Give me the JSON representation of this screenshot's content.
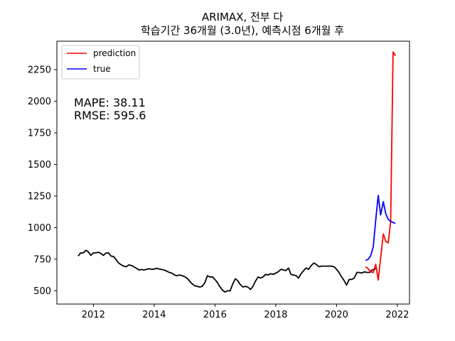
{
  "chart_data": {
    "type": "line",
    "title_line1": "ARIMAX, 전부 다",
    "title_line2": "학습기간 36개월 (3.0년), 예측시점 6개월 후",
    "xlabel": "",
    "ylabel": "",
    "xlim": [
      2010.8,
      2022.4
    ],
    "ylim": [
      395,
      2475
    ],
    "x_ticks": [
      2012,
      2014,
      2016,
      2018,
      2020,
      2022
    ],
    "x_tick_labels": [
      "2012",
      "2014",
      "2016",
      "2018",
      "2020",
      "2022"
    ],
    "y_ticks": [
      500,
      750,
      1000,
      1250,
      1500,
      1750,
      2000,
      2250
    ],
    "y_tick_labels": [
      "500",
      "750",
      "1000",
      "1250",
      "1500",
      "1750",
      "2000",
      "2250"
    ],
    "grid": false,
    "legend_position": "top-left",
    "annotations": [
      "MAPE: 38.11",
      "RMSE: 595.6"
    ],
    "series": [
      {
        "name": "",
        "color": "#000000",
        "points": [
          [
            2011.5,
            775
          ],
          [
            2011.58,
            800
          ],
          [
            2011.67,
            800
          ],
          [
            2011.75,
            820
          ],
          [
            2011.83,
            810
          ],
          [
            2011.92,
            780
          ],
          [
            2012.0,
            800
          ],
          [
            2012.08,
            800
          ],
          [
            2012.17,
            805
          ],
          [
            2012.25,
            795
          ],
          [
            2012.33,
            780
          ],
          [
            2012.42,
            800
          ],
          [
            2012.5,
            800
          ],
          [
            2012.58,
            775
          ],
          [
            2012.67,
            770
          ],
          [
            2012.75,
            745
          ],
          [
            2012.83,
            720
          ],
          [
            2012.92,
            705
          ],
          [
            2013.0,
            695
          ],
          [
            2013.08,
            690
          ],
          [
            2013.17,
            705
          ],
          [
            2013.25,
            700
          ],
          [
            2013.33,
            690
          ],
          [
            2013.42,
            678
          ],
          [
            2013.5,
            665
          ],
          [
            2013.58,
            668
          ],
          [
            2013.67,
            665
          ],
          [
            2013.75,
            670
          ],
          [
            2013.83,
            675
          ],
          [
            2013.92,
            670
          ],
          [
            2014.0,
            672
          ],
          [
            2014.08,
            678
          ],
          [
            2014.17,
            672
          ],
          [
            2014.25,
            668
          ],
          [
            2014.33,
            665
          ],
          [
            2014.42,
            655
          ],
          [
            2014.5,
            645
          ],
          [
            2014.58,
            640
          ],
          [
            2014.67,
            625
          ],
          [
            2014.75,
            620
          ],
          [
            2014.83,
            625
          ],
          [
            2014.92,
            620
          ],
          [
            2015.0,
            612
          ],
          [
            2015.08,
            600
          ],
          [
            2015.17,
            575
          ],
          [
            2015.25,
            555
          ],
          [
            2015.33,
            540
          ],
          [
            2015.42,
            535
          ],
          [
            2015.5,
            530
          ],
          [
            2015.58,
            535
          ],
          [
            2015.67,
            565
          ],
          [
            2015.75,
            620
          ],
          [
            2015.83,
            610
          ],
          [
            2015.92,
            610
          ],
          [
            2016.0,
            590
          ],
          [
            2016.08,
            565
          ],
          [
            2016.17,
            530
          ],
          [
            2016.25,
            505
          ],
          [
            2016.33,
            490
          ],
          [
            2016.42,
            500
          ],
          [
            2016.5,
            500
          ],
          [
            2016.58,
            550
          ],
          [
            2016.67,
            595
          ],
          [
            2016.75,
            580
          ],
          [
            2016.83,
            550
          ],
          [
            2016.92,
            530
          ],
          [
            2017.0,
            535
          ],
          [
            2017.08,
            530
          ],
          [
            2017.17,
            510
          ],
          [
            2017.25,
            535
          ],
          [
            2017.33,
            575
          ],
          [
            2017.42,
            610
          ],
          [
            2017.5,
            600
          ],
          [
            2017.58,
            610
          ],
          [
            2017.67,
            630
          ],
          [
            2017.75,
            625
          ],
          [
            2017.83,
            635
          ],
          [
            2017.92,
            630
          ],
          [
            2018.0,
            640
          ],
          [
            2018.08,
            650
          ],
          [
            2018.17,
            670
          ],
          [
            2018.25,
            665
          ],
          [
            2018.33,
            660
          ],
          [
            2018.42,
            680
          ],
          [
            2018.5,
            630
          ],
          [
            2018.58,
            625
          ],
          [
            2018.67,
            620
          ],
          [
            2018.75,
            600
          ],
          [
            2018.83,
            635
          ],
          [
            2018.92,
            660
          ],
          [
            2019.0,
            680
          ],
          [
            2019.08,
            670
          ],
          [
            2019.17,
            700
          ],
          [
            2019.25,
            720
          ],
          [
            2019.33,
            710
          ],
          [
            2019.42,
            690
          ],
          [
            2019.5,
            695
          ],
          [
            2019.58,
            695
          ],
          [
            2019.67,
            695
          ],
          [
            2019.75,
            695
          ],
          [
            2019.83,
            695
          ],
          [
            2019.92,
            690
          ],
          [
            2020.0,
            670
          ],
          [
            2020.08,
            645
          ],
          [
            2020.17,
            610
          ],
          [
            2020.25,
            580
          ],
          [
            2020.33,
            545
          ],
          [
            2020.42,
            590
          ],
          [
            2020.5,
            590
          ],
          [
            2020.58,
            600
          ],
          [
            2020.67,
            645
          ],
          [
            2020.75,
            645
          ],
          [
            2020.83,
            640
          ],
          [
            2020.92,
            650
          ],
          [
            2021.0,
            645
          ],
          [
            2021.08,
            645
          ],
          [
            2021.17,
            665
          ],
          [
            2021.25,
            670
          ],
          [
            2021.33,
            680
          ]
        ]
      },
      {
        "name": "prediction",
        "color": "#ff0000",
        "points": [
          [
            2020.96,
            690
          ],
          [
            2021.04,
            675
          ],
          [
            2021.12,
            650
          ],
          [
            2021.21,
            645
          ],
          [
            2021.29,
            710
          ],
          [
            2021.37,
            585
          ],
          [
            2021.45,
            760
          ],
          [
            2021.54,
            950
          ],
          [
            2021.62,
            890
          ],
          [
            2021.7,
            880
          ],
          [
            2021.78,
            1050
          ],
          [
            2021.86,
            2390
          ],
          [
            2021.94,
            2360
          ]
        ]
      },
      {
        "name": "true",
        "color": "#0000ff",
        "points": [
          [
            2020.96,
            740
          ],
          [
            2021.04,
            750
          ],
          [
            2021.12,
            775
          ],
          [
            2021.21,
            850
          ],
          [
            2021.29,
            1060
          ],
          [
            2021.37,
            1255
          ],
          [
            2021.45,
            1100
          ],
          [
            2021.54,
            1205
          ],
          [
            2021.62,
            1110
          ],
          [
            2021.7,
            1065
          ],
          [
            2021.78,
            1050
          ],
          [
            2021.86,
            1040
          ],
          [
            2021.94,
            1035
          ]
        ]
      }
    ]
  }
}
